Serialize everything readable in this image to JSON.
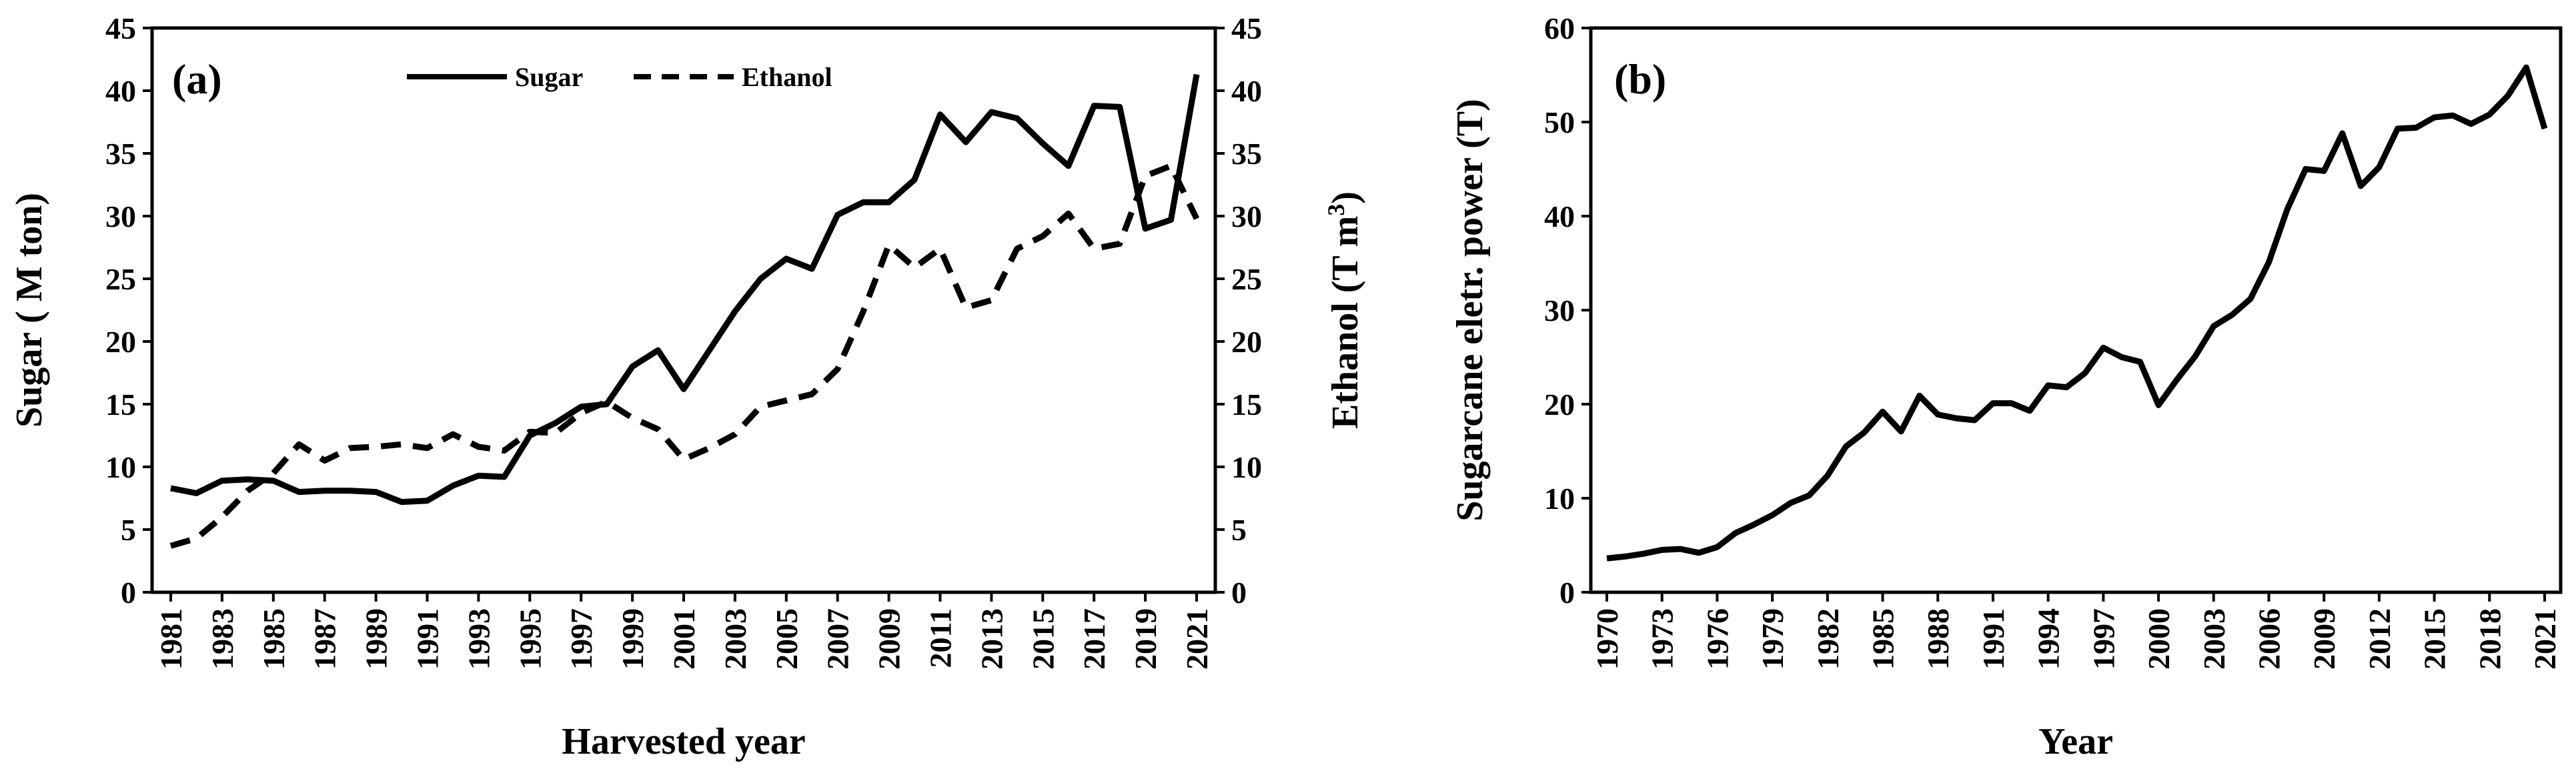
{
  "chart_data": [
    {
      "type": "line",
      "panel_label": "(a)",
      "xlabel": "Harvested year",
      "ylabel": "Sugar ( M ton)",
      "y2label_text": "Ethanol (T m",
      "y2label_sup": "3",
      "y2label_close": ")",
      "xlim": [
        1981,
        2021
      ],
      "ylim": [
        0,
        45
      ],
      "y2lim": [
        0,
        45
      ],
      "x_ticks": [
        1981,
        1983,
        1985,
        1987,
        1989,
        1991,
        1993,
        1995,
        1997,
        1999,
        2001,
        2003,
        2005,
        2007,
        2009,
        2011,
        2013,
        2015,
        2017,
        2019,
        2021
      ],
      "y_ticks": [
        0,
        5,
        10,
        15,
        20,
        25,
        30,
        35,
        40,
        45
      ],
      "y2_ticks": [
        0,
        5,
        10,
        15,
        20,
        25,
        30,
        35,
        40,
        45
      ],
      "legend_position": "top-center",
      "grid": false,
      "x": [
        1981,
        1982,
        1983,
        1984,
        1985,
        1986,
        1987,
        1988,
        1989,
        1990,
        1991,
        1992,
        1993,
        1994,
        1995,
        1996,
        1997,
        1998,
        1999,
        2000,
        2001,
        2002,
        2003,
        2004,
        2005,
        2006,
        2007,
        2008,
        2009,
        2010,
        2011,
        2012,
        2013,
        2014,
        2015,
        2016,
        2017,
        2018,
        2019,
        2020,
        2021
      ],
      "series": [
        {
          "name": "Sugar",
          "style": "solid",
          "axis": "left",
          "values": [
            8.3,
            7.9,
            8.9,
            9.0,
            8.9,
            8.0,
            8.1,
            8.1,
            8.0,
            7.2,
            7.3,
            8.5,
            9.3,
            9.2,
            12.5,
            13.5,
            14.8,
            15.0,
            18.0,
            19.3,
            16.2,
            19.3,
            22.4,
            25.0,
            26.6,
            25.8,
            30.1,
            31.1,
            31.1,
            32.9,
            38.1,
            35.9,
            38.3,
            37.8,
            35.8,
            34.0,
            38.8,
            38.7,
            29.0,
            29.7,
            41.3
          ]
        },
        {
          "name": "Ethanol",
          "style": "dashed",
          "axis": "right",
          "values": [
            3.7,
            4.3,
            6.0,
            8.1,
            9.5,
            11.8,
            10.5,
            11.5,
            11.6,
            11.8,
            11.5,
            12.6,
            11.6,
            11.3,
            12.8,
            12.7,
            14.3,
            15.2,
            13.9,
            13.0,
            10.6,
            11.5,
            12.6,
            14.8,
            15.3,
            15.8,
            17.8,
            22.4,
            27.7,
            25.9,
            27.4,
            22.7,
            23.3,
            27.4,
            28.4,
            30.2,
            27.4,
            27.8,
            33.2,
            34.0,
            29.8
          ]
        }
      ]
    },
    {
      "type": "line",
      "panel_label": "(b)",
      "xlabel": "Year",
      "ylabel": "Sugarcane eletr. power (T)",
      "xlim": [
        1970,
        2021
      ],
      "ylim": [
        0,
        60
      ],
      "x_ticks": [
        1970,
        1973,
        1976,
        1979,
        1982,
        1985,
        1988,
        1991,
        1994,
        1997,
        2000,
        2003,
        2006,
        2009,
        2012,
        2015,
        2018,
        2021
      ],
      "y_ticks": [
        0,
        10,
        20,
        30,
        40,
        50,
        60
      ],
      "grid": false,
      "x": [
        1970,
        1971,
        1972,
        1973,
        1974,
        1975,
        1976,
        1977,
        1978,
        1979,
        1980,
        1981,
        1982,
        1983,
        1984,
        1985,
        1986,
        1987,
        1988,
        1989,
        1990,
        1991,
        1992,
        1993,
        1994,
        1995,
        1996,
        1997,
        1998,
        1999,
        2000,
        2001,
        2002,
        2003,
        2004,
        2005,
        2006,
        2007,
        2008,
        2009,
        2010,
        2011,
        2012,
        2013,
        2014,
        2015,
        2016,
        2017,
        2018,
        2019,
        2020,
        2021
      ],
      "series": [
        {
          "style": "solid",
          "values": [
            3.6,
            3.8,
            4.1,
            4.5,
            4.6,
            4.2,
            4.8,
            6.3,
            7.2,
            8.2,
            9.5,
            10.3,
            12.4,
            15.5,
            17.0,
            19.2,
            17.1,
            20.9,
            18.9,
            18.5,
            18.3,
            20.1,
            20.1,
            19.3,
            22.0,
            21.8,
            23.3,
            26.0,
            25.0,
            24.5,
            19.9,
            22.6,
            25.1,
            28.3,
            29.5,
            31.2,
            35.1,
            40.7,
            45.0,
            44.8,
            48.8,
            43.2,
            45.2,
            49.3,
            49.4,
            50.5,
            50.7,
            49.8,
            50.8,
            52.8,
            55.8,
            49.3
          ]
        }
      ]
    }
  ]
}
